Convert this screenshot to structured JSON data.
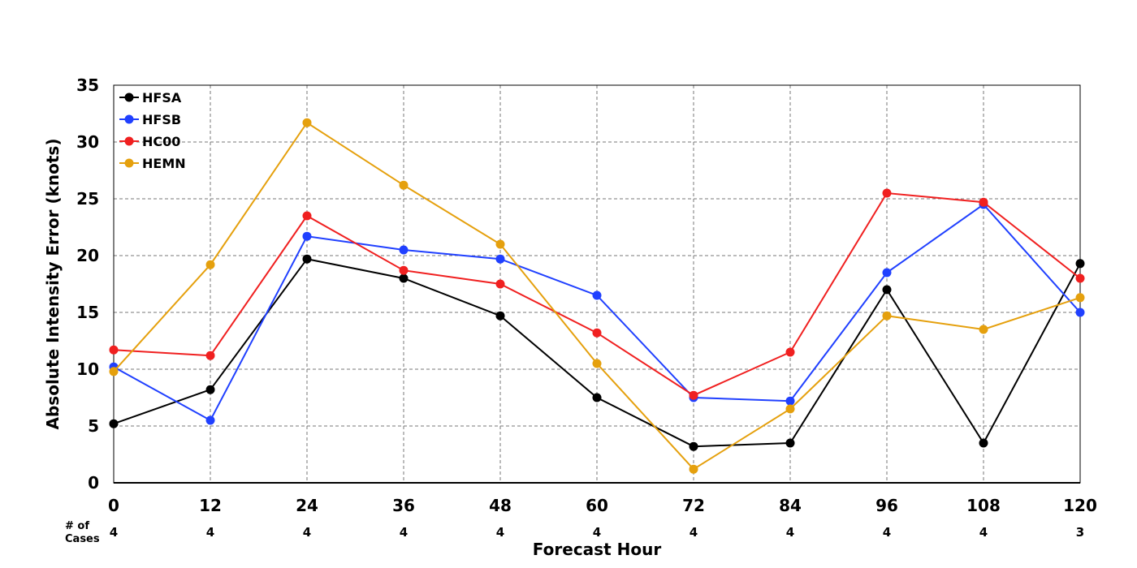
{
  "chart_data": {
    "type": "line",
    "title": "",
    "xlabel": "Forecast Hour",
    "ylabel": "Absolute Intensity Error (knots)",
    "x": [
      0,
      12,
      24,
      36,
      48,
      60,
      72,
      84,
      96,
      108,
      120
    ],
    "xlim": [
      0,
      120
    ],
    "ylim": [
      0,
      35
    ],
    "yticks": [
      0,
      5,
      10,
      15,
      20,
      25,
      30,
      35
    ],
    "grid": true,
    "legend_position": "top-left",
    "series": [
      {
        "name": "HFSA",
        "color": "#000000",
        "values": [
          5.2,
          8.2,
          19.7,
          18.0,
          14.7,
          7.5,
          3.2,
          3.5,
          17.0,
          3.5,
          19.3
        ]
      },
      {
        "name": "HFSB",
        "color": "#2040ff",
        "values": [
          10.2,
          5.5,
          21.7,
          20.5,
          19.7,
          16.5,
          7.5,
          7.2,
          18.5,
          24.5,
          15.0
        ]
      },
      {
        "name": "HC00",
        "color": "#f02020",
        "values": [
          11.7,
          11.2,
          23.5,
          18.7,
          17.5,
          13.2,
          7.7,
          11.5,
          25.5,
          24.7,
          18.0
        ]
      },
      {
        "name": "HEMN",
        "color": "#e5a00d",
        "values": [
          9.8,
          19.2,
          31.7,
          26.2,
          21.0,
          10.5,
          1.2,
          6.5,
          14.7,
          13.5,
          16.3
        ]
      }
    ],
    "cases": {
      "label_line1": "# of",
      "label_line2": "Cases",
      "values": [
        "4",
        "4",
        "4",
        "4",
        "4",
        "4",
        "4",
        "4",
        "4",
        "4",
        "3"
      ]
    }
  }
}
